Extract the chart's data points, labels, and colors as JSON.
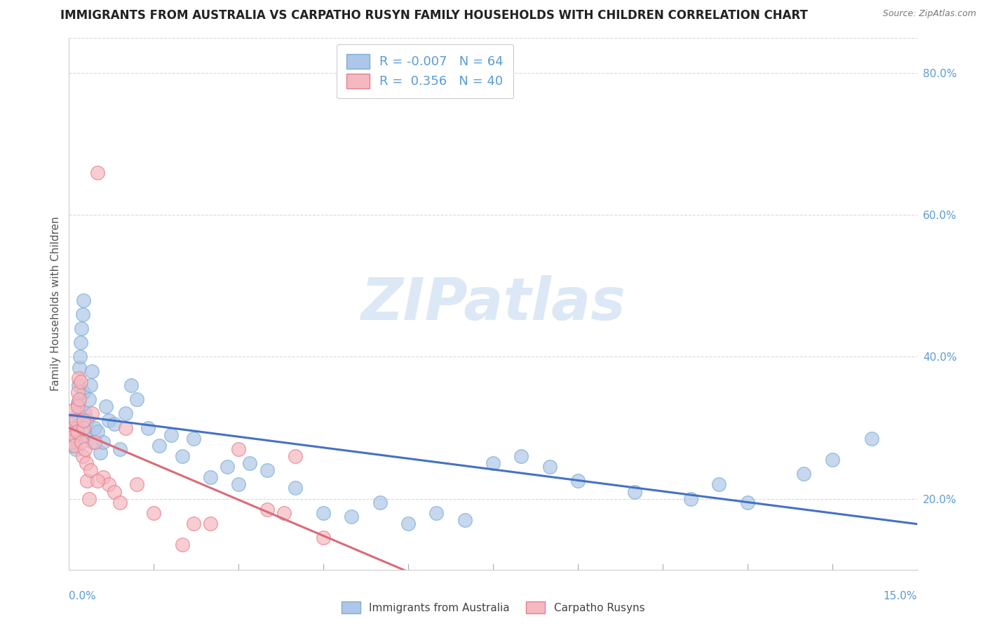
{
  "title": "IMMIGRANTS FROM AUSTRALIA VS CARPATHO RUSYN FAMILY HOUSEHOLDS WITH CHILDREN CORRELATION CHART",
  "source": "Source: ZipAtlas.com",
  "ylabel": "Family Households with Children",
  "xlim": [
    0.0,
    15.0
  ],
  "ylim": [
    10.0,
    85.0
  ],
  "yticks": [
    20.0,
    40.0,
    60.0,
    80.0
  ],
  "blue_R": -0.007,
  "pink_R": 0.356,
  "blue_N": 64,
  "pink_N": 40,
  "background_color": "#ffffff",
  "grid_color": "#d8d8d8",
  "blue_color": "#aec6e8",
  "blue_edge_color": "#7bafd4",
  "pink_color": "#f4b8c1",
  "pink_edge_color": "#e87e8a",
  "blue_line_color": "#4472c4",
  "pink_line_color": "#d96b7a",
  "title_fontsize": 12,
  "label_fontsize": 10,
  "tick_fontsize": 10,
  "watermark_color": "#dce8f5",
  "blue_scatter_x": [
    0.05,
    0.06,
    0.07,
    0.08,
    0.1,
    0.12,
    0.13,
    0.14,
    0.15,
    0.16,
    0.17,
    0.18,
    0.19,
    0.2,
    0.22,
    0.24,
    0.25,
    0.26,
    0.28,
    0.3,
    0.32,
    0.35,
    0.38,
    0.4,
    0.42,
    0.45,
    0.5,
    0.55,
    0.6,
    0.65,
    0.7,
    0.8,
    0.9,
    1.0,
    1.1,
    1.2,
    1.4,
    1.6,
    1.8,
    2.0,
    2.2,
    2.5,
    2.8,
    3.0,
    3.2,
    3.5,
    4.0,
    4.5,
    5.0,
    5.5,
    6.0,
    6.5,
    7.0,
    7.5,
    8.0,
    8.5,
    9.0,
    10.0,
    11.0,
    11.5,
    12.0,
    13.0,
    13.5,
    14.2
  ],
  "blue_scatter_y": [
    27.5,
    28.0,
    29.0,
    30.0,
    31.0,
    27.0,
    28.5,
    30.0,
    32.0,
    33.5,
    36.0,
    38.5,
    40.0,
    42.0,
    44.0,
    46.0,
    48.0,
    35.0,
    32.0,
    29.0,
    31.0,
    34.0,
    36.0,
    38.0,
    28.0,
    30.0,
    29.5,
    26.5,
    28.0,
    33.0,
    31.0,
    30.5,
    27.0,
    32.0,
    36.0,
    34.0,
    30.0,
    27.5,
    29.0,
    26.0,
    28.5,
    23.0,
    24.5,
    22.0,
    25.0,
    24.0,
    21.5,
    18.0,
    17.5,
    19.5,
    16.5,
    18.0,
    17.0,
    25.0,
    26.0,
    24.5,
    22.5,
    21.0,
    20.0,
    22.0,
    19.5,
    23.5,
    25.5,
    28.5
  ],
  "pink_scatter_x": [
    0.04,
    0.06,
    0.08,
    0.09,
    0.1,
    0.12,
    0.14,
    0.15,
    0.16,
    0.17,
    0.18,
    0.2,
    0.22,
    0.24,
    0.26,
    0.28,
    0.3,
    0.32,
    0.35,
    0.38,
    0.4,
    0.45,
    0.5,
    0.6,
    0.7,
    0.8,
    0.9,
    1.0,
    1.2,
    1.5,
    2.0,
    2.5,
    3.0,
    3.5,
    4.0,
    4.5,
    2.2,
    0.25,
    0.5,
    3.8
  ],
  "pink_scatter_y": [
    28.0,
    30.0,
    32.5,
    29.0,
    27.5,
    31.0,
    29.5,
    33.0,
    35.0,
    37.0,
    34.0,
    36.5,
    28.0,
    26.0,
    30.0,
    27.0,
    25.0,
    22.5,
    20.0,
    24.0,
    32.0,
    28.0,
    66.0,
    23.0,
    22.0,
    21.0,
    19.5,
    30.0,
    22.0,
    18.0,
    13.5,
    16.5,
    27.0,
    18.5,
    26.0,
    14.5,
    16.5,
    31.0,
    22.5,
    18.0
  ]
}
